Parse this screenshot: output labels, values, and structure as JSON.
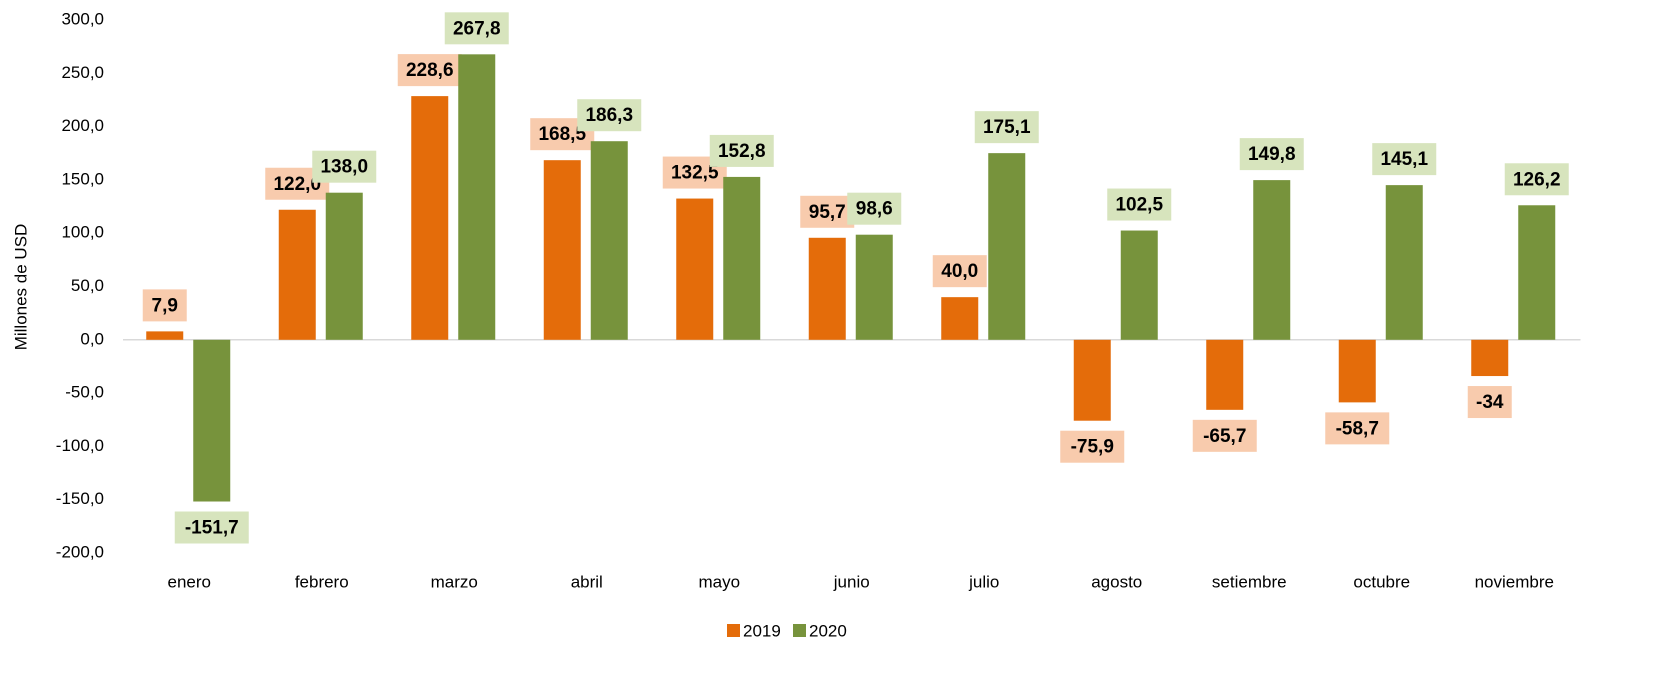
{
  "chart_data": {
    "type": "bar",
    "y_label": "Millones de USD",
    "categories": [
      "enero",
      "febrero",
      "marzo",
      "abril",
      "mayo",
      "junio",
      "julio",
      "agosto",
      "setiembre",
      "octubre",
      "noviembre"
    ],
    "series": [
      {
        "name": "2019",
        "color": "#e46c0a",
        "label_bg": "#f8cbad",
        "values": [
          7.9,
          122.0,
          228.6,
          168.5,
          132.5,
          95.7,
          40.0,
          -75.9,
          -65.7,
          -58.7,
          -34
        ],
        "value_labels": [
          "7,9",
          "122,0",
          "228,6",
          "168,5",
          "132,5",
          "95,7",
          "40,0",
          "-75,9",
          "-65,7",
          "-58,7",
          "-34"
        ]
      },
      {
        "name": "2020",
        "color": "#77933c",
        "label_bg": "#d7e4bd",
        "values": [
          -151.7,
          138.0,
          267.8,
          186.3,
          152.8,
          98.6,
          175.1,
          102.5,
          149.8,
          145.1,
          126.2
        ],
        "value_labels": [
          "-151,7",
          "138,0",
          "267,8",
          "186,3",
          "152,8",
          "98,6",
          "175,1",
          "102,5",
          "149,8",
          "145,1",
          "126,2"
        ]
      }
    ],
    "ylim": [
      -200,
      300
    ],
    "yticks": [
      {
        "value": -200,
        "label": "-200,0"
      },
      {
        "value": -150,
        "label": "-150,0"
      },
      {
        "value": -100,
        "label": "-100,0"
      },
      {
        "value": -50,
        "label": "-50,0"
      },
      {
        "value": 0,
        "label": "0,0"
      },
      {
        "value": 50,
        "label": "50,0"
      },
      {
        "value": 100,
        "label": "100,0"
      },
      {
        "value": 150,
        "label": "150,0"
      },
      {
        "value": 200,
        "label": "200,0"
      },
      {
        "value": 250,
        "label": "250,0"
      },
      {
        "value": 300,
        "label": "300,0"
      }
    ],
    "legend": "bottom"
  }
}
